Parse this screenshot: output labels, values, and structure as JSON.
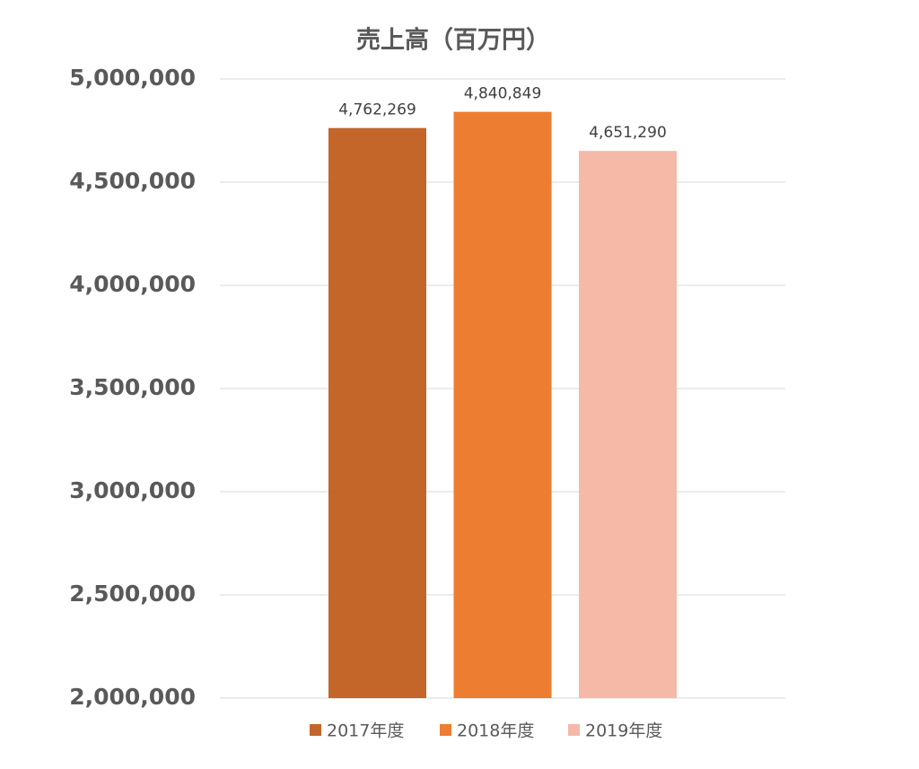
{
  "chart_data": {
    "type": "bar",
    "title": "売上高（百万円）",
    "categories": [
      null
    ],
    "series": [
      {
        "name": "2017年度",
        "color": "#c4652a",
        "values": [
          4762269
        ],
        "value_labels": [
          "4,762,269"
        ]
      },
      {
        "name": "2018年度",
        "color": "#ed7d31",
        "values": [
          4840849
        ],
        "value_labels": [
          "4,840,849"
        ]
      },
      {
        "name": "2019年度",
        "color": "#f4b9a7",
        "values": [
          4651290
        ],
        "value_labels": [
          "4,651,290"
        ]
      }
    ],
    "ylim": [
      2000000,
      5000000
    ],
    "yticks": [
      {
        "value": 2000000,
        "label": "2,000,000"
      },
      {
        "value": 2500000,
        "label": "2,500,000"
      },
      {
        "value": 3000000,
        "label": "3,000,000"
      },
      {
        "value": 3500000,
        "label": "3,500,000"
      },
      {
        "value": 4000000,
        "label": "4,000,000"
      },
      {
        "value": 4500000,
        "label": "4,500,000"
      },
      {
        "value": 5000000,
        "label": "5,000,000"
      }
    ],
    "grid": true,
    "legend": "bottom"
  }
}
